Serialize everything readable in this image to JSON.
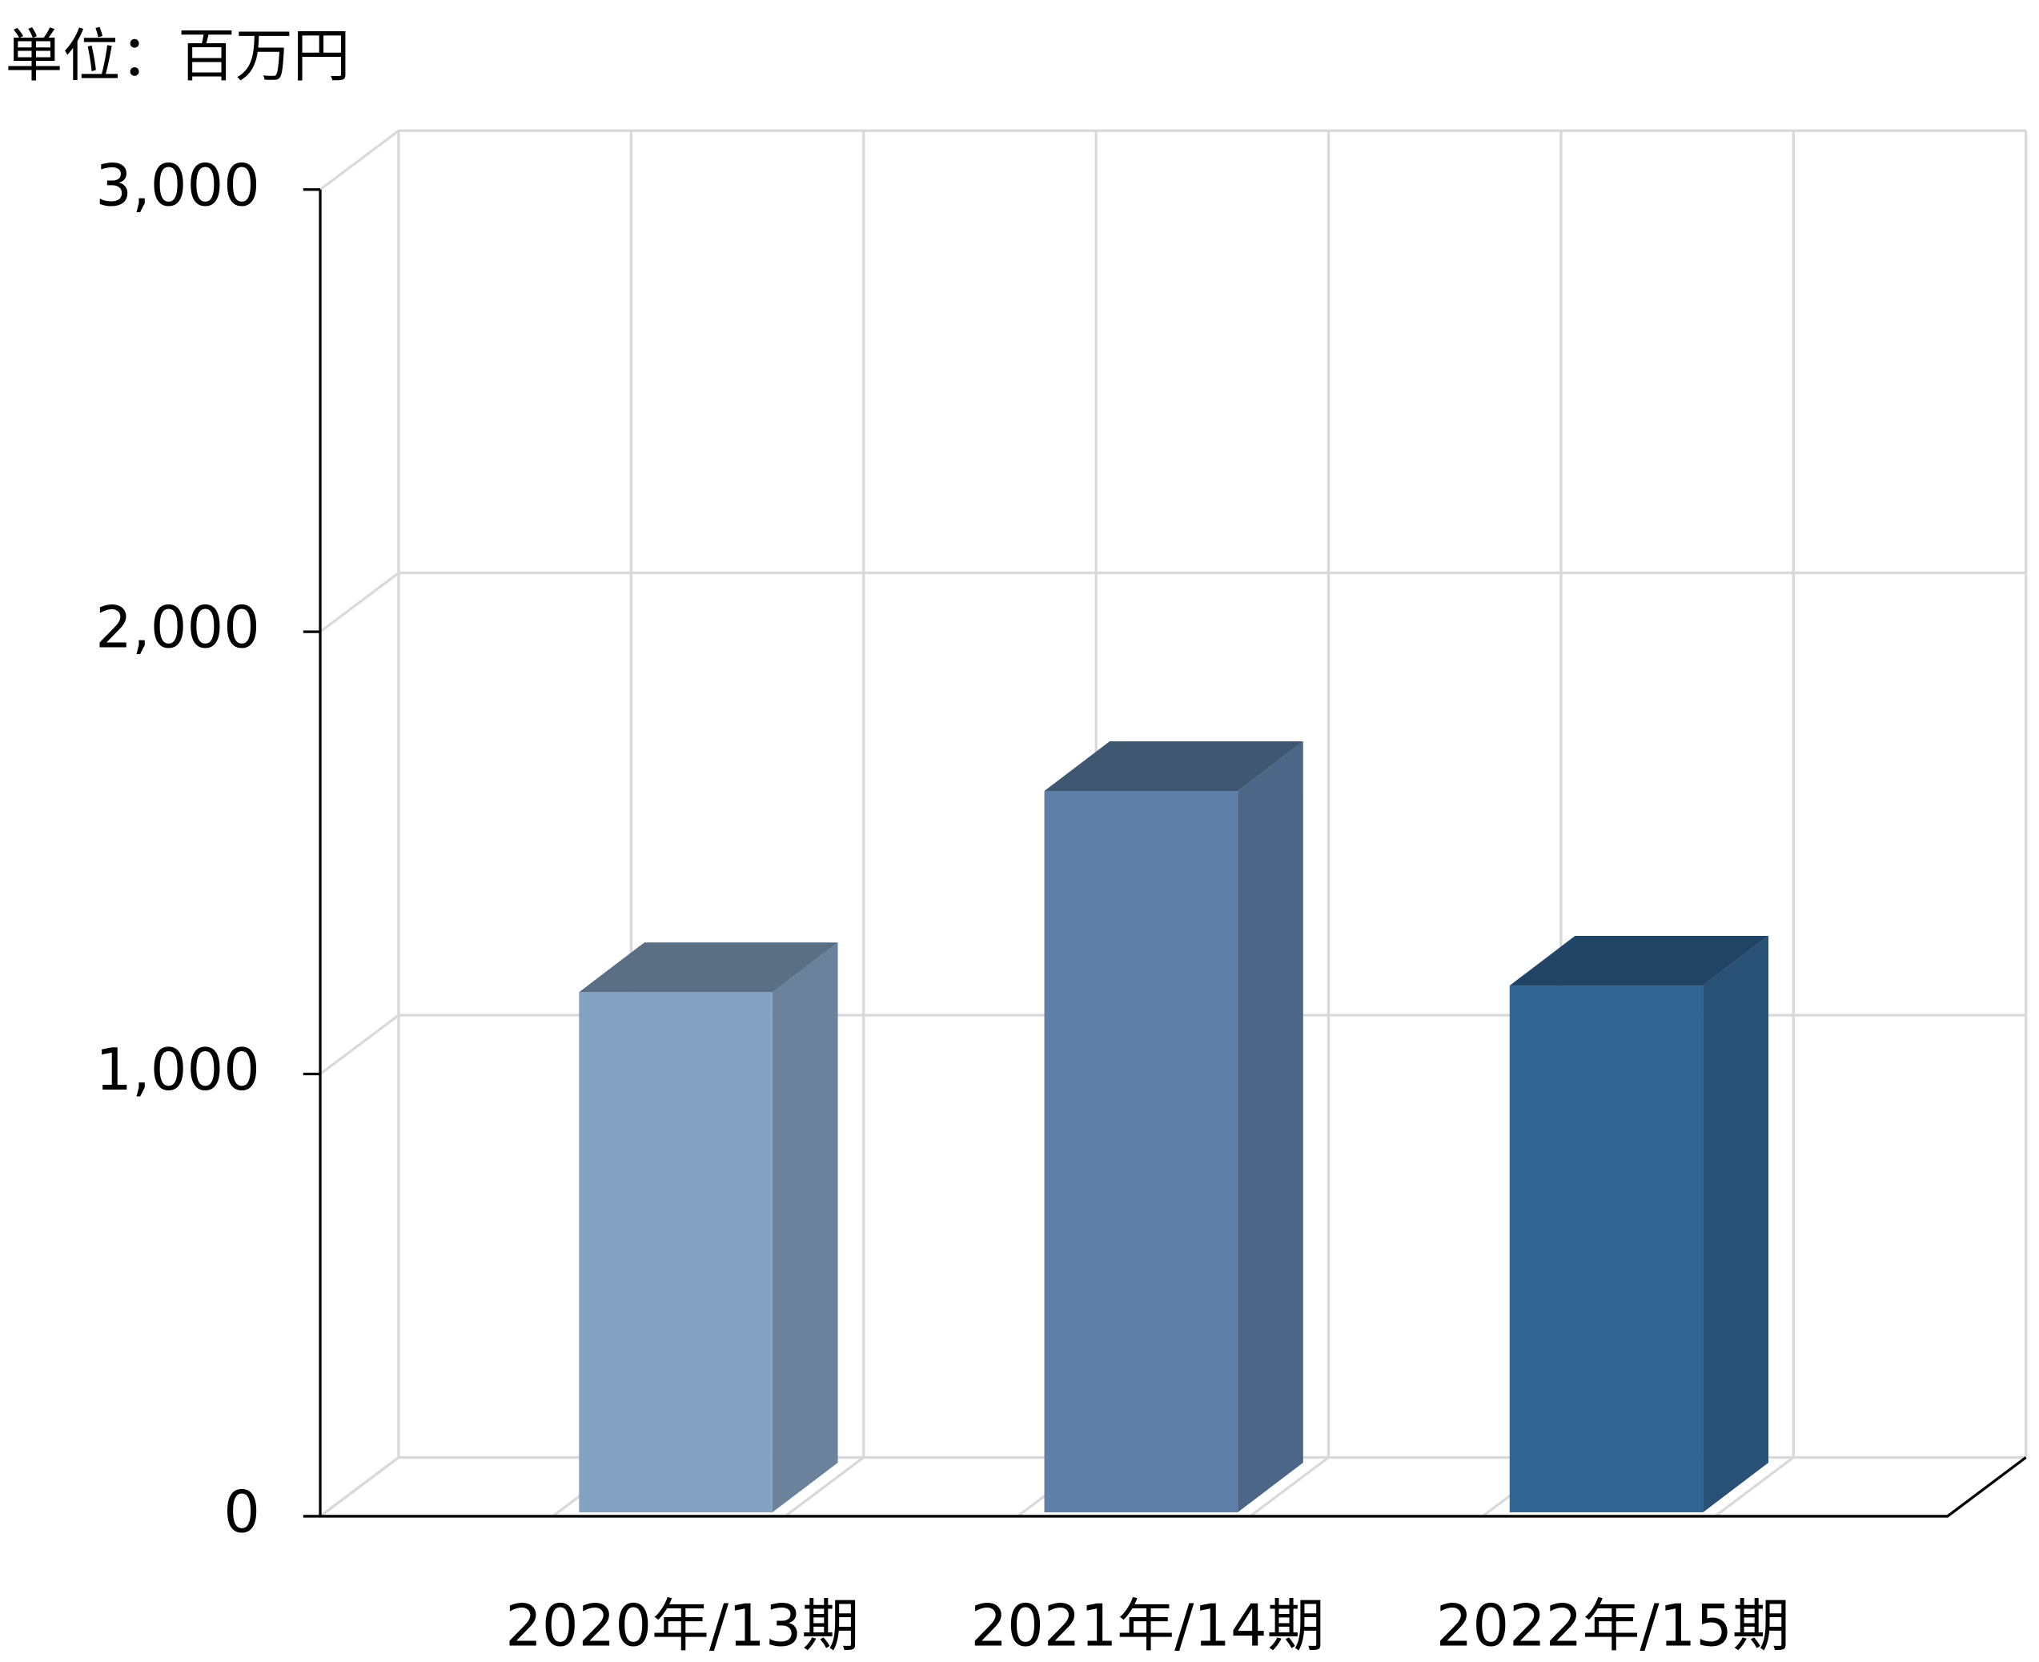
{
  "chart_data": {
    "type": "bar",
    "title": "単位：百万円",
    "categories": [
      "2020年/13期",
      "2021年/14期",
      "2022年/15期"
    ],
    "values": [
      1185,
      1640,
      1200
    ],
    "colors": [
      "#84a2c2",
      "#5e80a8",
      "#336594"
    ],
    "ylim": [
      0,
      3000
    ],
    "yticks": [
      0,
      {
        "value": 1000,
        "label": "1,000"
      },
      {
        "value": 2000,
        "label": "2,000"
      },
      {
        "value": 3000,
        "label": "3,000"
      }
    ],
    "grid": true
  }
}
